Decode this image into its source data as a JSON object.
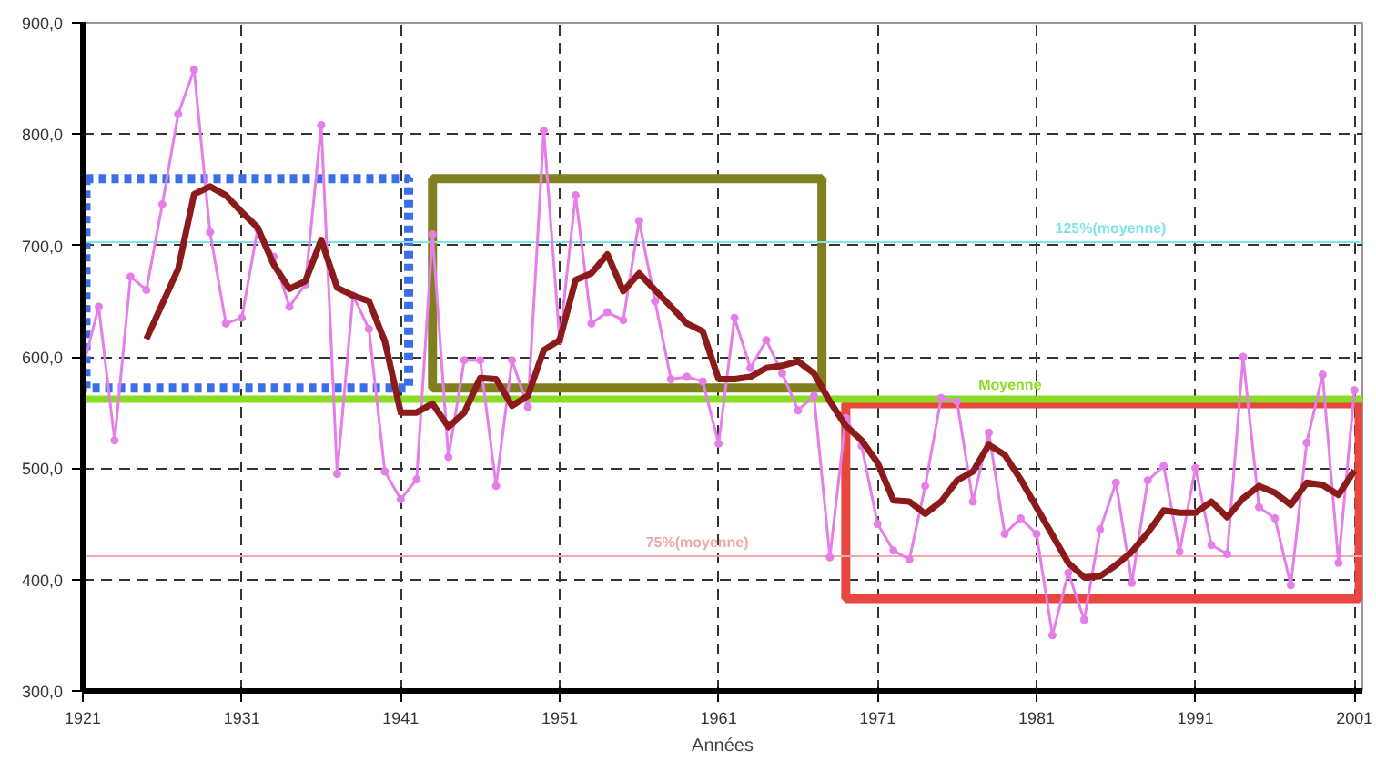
{
  "chart_data": {
    "type": "line",
    "xlabel": "Années",
    "xlim": [
      1921,
      2001.5
    ],
    "ylim": [
      300,
      900
    ],
    "xticks": [
      1921,
      1931,
      1941,
      1951,
      1961,
      1971,
      1981,
      1991,
      2001
    ],
    "yticks": [
      {
        "value": 300,
        "label": "300,0"
      },
      {
        "value": 400,
        "label": "400,0"
      },
      {
        "value": 500,
        "label": "500,0"
      },
      {
        "value": 600,
        "label": "600,0"
      },
      {
        "value": 700,
        "label": "700,0"
      },
      {
        "value": 800,
        "label": "800,0"
      },
      {
        "value": 900,
        "label": "900,0"
      }
    ],
    "grid": true,
    "series": [
      {
        "color": "#e57ee8",
        "marker": "circle",
        "x": [
          1921,
          1922,
          1923,
          1924,
          1925,
          1926,
          1927,
          1928,
          1929,
          1930,
          1931,
          1932,
          1933,
          1934,
          1935,
          1936,
          1937,
          1938,
          1939,
          1940,
          1941,
          1942,
          1943,
          1944,
          1945,
          1946,
          1947,
          1948,
          1949,
          1950,
          1951,
          1952,
          1953,
          1954,
          1955,
          1956,
          1957,
          1958,
          1959,
          1960,
          1961,
          1962,
          1963,
          1964,
          1965,
          1966,
          1967,
          1968,
          1969,
          1970,
          1971,
          1972,
          1973,
          1974,
          1975,
          1976,
          1977,
          1978,
          1979,
          1980,
          1981,
          1982,
          1983,
          1984,
          1985,
          1986,
          1987,
          1988,
          1989,
          1990,
          1991,
          1992,
          1993,
          1994,
          1995,
          1996,
          1997,
          1998,
          1999,
          2000,
          2001
        ],
        "values": [
          590,
          645,
          525,
          672,
          660,
          737,
          818,
          858,
          712,
          630,
          635,
          715,
          690,
          645,
          665,
          808,
          495,
          655,
          625,
          497,
          472,
          490,
          710,
          510,
          597,
          597,
          484,
          597,
          555,
          803,
          615,
          745,
          630,
          640,
          633,
          722,
          650,
          580,
          582,
          578,
          522,
          635,
          590,
          615,
          585,
          552,
          565,
          420,
          545,
          520,
          450,
          426,
          418,
          484,
          563,
          560,
          470,
          532,
          441,
          455,
          441,
          350,
          406,
          364,
          445,
          487,
          397,
          489,
          502,
          425,
          500,
          431,
          423,
          600,
          465,
          455,
          395,
          523,
          584,
          415,
          570
        ]
      },
      {
        "color": "#8b1a1a",
        "marker": "none",
        "x": [
          1925,
          1927,
          1928,
          1929,
          1930,
          1931,
          1932,
          1933,
          1934,
          1935,
          1936,
          1937,
          1938,
          1939,
          1940,
          1941,
          1942,
          1943,
          1944,
          1945,
          1946,
          1947,
          1948,
          1949,
          1950,
          1951,
          1952,
          1953,
          1954,
          1955,
          1956,
          1957,
          1958,
          1959,
          1960,
          1961,
          1962,
          1963,
          1964,
          1965,
          1966,
          1967,
          1968,
          1969,
          1970,
          1971,
          1972,
          1973,
          1974,
          1975,
          1976,
          1977,
          1978,
          1979,
          1980,
          1981,
          1982,
          1983,
          1984,
          1985,
          1986,
          1987,
          1988,
          1989,
          1990,
          1991,
          1992,
          1993,
          1994,
          1995,
          1996,
          1997,
          1998,
          1999,
          2000,
          2001
        ],
        "values": [
          616,
          679,
          746,
          753,
          745,
          730,
          716,
          683,
          661,
          668,
          705,
          662,
          655,
          650,
          614,
          550,
          550,
          558,
          537,
          550,
          581,
          580,
          556,
          565,
          606,
          615,
          669,
          675,
          692,
          659,
          675,
          660,
          645,
          630,
          623,
          580,
          580,
          582,
          590,
          592,
          596,
          585,
          560,
          538,
          525,
          505,
          471,
          470,
          459,
          470,
          489,
          497,
          521,
          512,
          490,
          465,
          440,
          415,
          402,
          403,
          413,
          425,
          442,
          462,
          460,
          460,
          470,
          456,
          473,
          484,
          478,
          467,
          487,
          485,
          476,
          498
        ]
      }
    ],
    "ref_lines": [
      {
        "axis": "y",
        "value": 703,
        "label": "125%(moyenne)",
        "color": "#7fe3ea"
      },
      {
        "axis": "y",
        "value": 562,
        "label": "Moyenne",
        "color": "#88dd22"
      },
      {
        "axis": "y",
        "value": 421,
        "label": "75%(moyenne)",
        "color": "#f0a8a8"
      }
    ]
  }
}
